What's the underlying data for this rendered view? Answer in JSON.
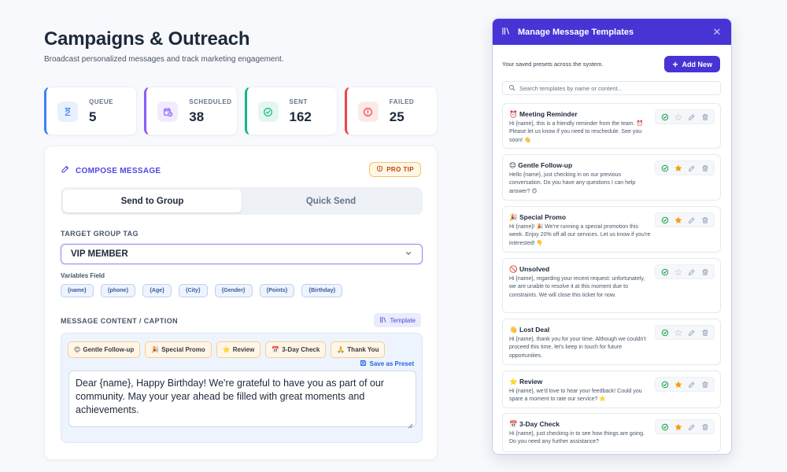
{
  "page": {
    "title": "Campaigns & Outreach",
    "subtitle": "Broadcast personalized messages and track marketing engagement."
  },
  "stats": [
    {
      "label": "QUEUE",
      "value": "5",
      "color": "#3b82f6",
      "bg": "#e8f0fe",
      "icon": "hourglass-icon"
    },
    {
      "label": "SCHEDULED",
      "value": "38",
      "color": "#8b5cf6",
      "bg": "#f1ebfe",
      "icon": "calendar-clock-icon"
    },
    {
      "label": "SENT",
      "value": "162",
      "color": "#10b981",
      "bg": "#e3f7ef",
      "icon": "check-circle-icon"
    },
    {
      "label": "FAILED",
      "value": "25",
      "color": "#ef4444",
      "bg": "#fde8e8",
      "icon": "alert-circle-icon"
    }
  ],
  "compose": {
    "title": "COMPOSE MESSAGE",
    "pro_tip": "PRO TIP",
    "tabs": [
      {
        "label": "Send to Group",
        "active": true
      },
      {
        "label": "Quick Send",
        "active": false
      }
    ],
    "target_label": "TARGET GROUP TAG",
    "target_value": "VIP MEMBER",
    "variables_label": "Variables Field",
    "variables": [
      "{name}",
      "{phone}",
      "{Age}",
      "{City}",
      "{Gender}",
      "{Points}",
      "{Birthday}"
    ],
    "content_label": "MESSAGE CONTENT / CAPTION",
    "template_button": "Template",
    "quick_chips": [
      {
        "emoji": "😊",
        "label": "Gentle Follow-up"
      },
      {
        "emoji": "🎉",
        "label": "Special Promo"
      },
      {
        "emoji": "⭐",
        "label": "Review"
      },
      {
        "emoji": "📅",
        "label": "3-Day Check"
      },
      {
        "emoji": "🙏",
        "label": "Thank You"
      }
    ],
    "save_preset": "Save as Preset",
    "message": "Dear {name}, Happy Birthday! We're grateful to have you as part of our community. May your year ahead be filled with great moments and achievements."
  },
  "modal": {
    "title": "Manage Message Templates",
    "subtitle": "Your saved presets across the system.",
    "add_new": "Add New",
    "search_placeholder": "Search templates by name or content...",
    "templates": [
      {
        "emoji": "⏰",
        "name": "Meeting Reminder",
        "text": "Hi {name}, this is a friendly reminder from the team. ⏰ Please let us know if you need to reschedule. See you soon! 👋",
        "starred": false
      },
      {
        "emoji": "😊",
        "name": "Gentle Follow-up",
        "text": "Hello {name}, just checking in on our previous conversation. Do you have any questions I can help answer? 😊",
        "starred": true
      },
      {
        "emoji": "🎉",
        "name": "Special Promo",
        "text": "Hi {name}! 🎉 We're running a special promotion this week. Enjoy 20% off all our services. Let us know if you're interested! 👇",
        "starred": true
      },
      {
        "emoji": "🚫",
        "name": "Unsolved",
        "text": "Hi {name}, regarding your recent request: unfortunately, we are unable to resolve it at this moment due to constraints. We will close this ticket for now.",
        "starred": false
      },
      {
        "emoji": "👋",
        "name": "Lost Deal",
        "text": "Hi {name}, thank you for your time. Although we couldn't proceed this time, let's keep in touch for future opportunities.",
        "starred": false
      },
      {
        "emoji": "⭐",
        "name": "Review",
        "text": "Hi {name}, we'd love to hear your feedback! Could you spare a moment to rate our service? ⭐",
        "starred": true
      },
      {
        "emoji": "📅",
        "name": "3-Day Check",
        "text": "Hi {name}, just checking in to see how things are going. Do you need any further assistance?",
        "starred": true
      }
    ]
  }
}
